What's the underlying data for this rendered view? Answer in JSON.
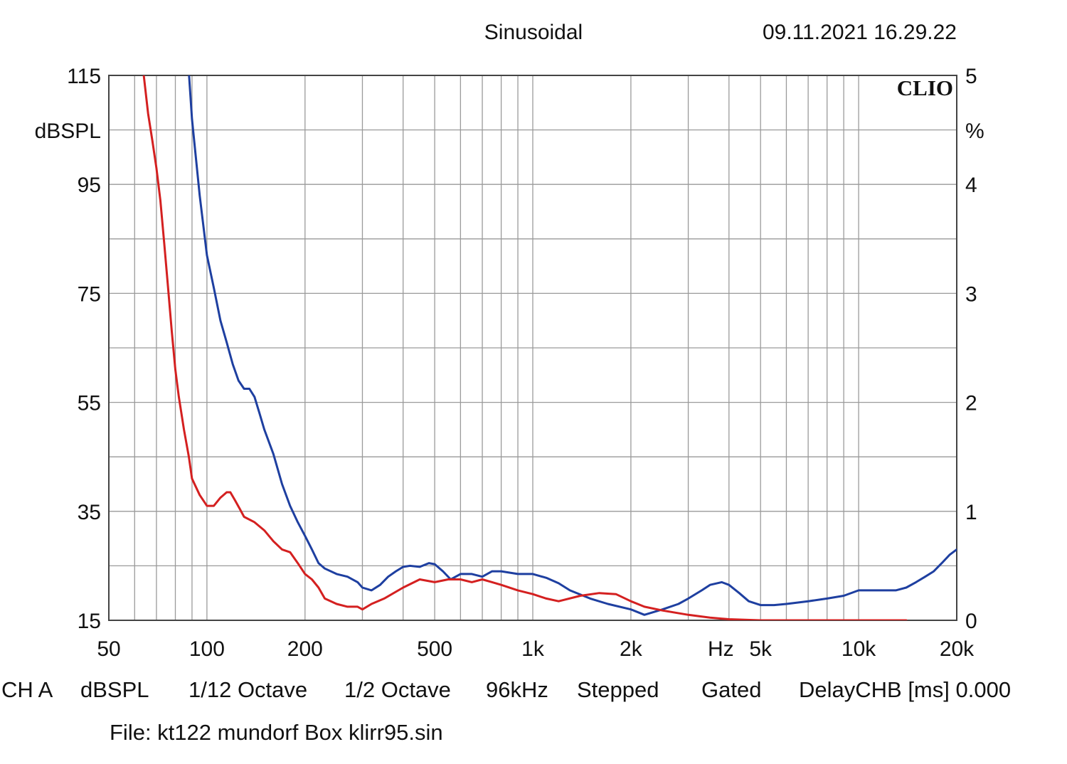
{
  "header": {
    "mode": "Sinusoidal",
    "timestamp": "09.11.2021 16.29.22"
  },
  "logo": "CLIO",
  "chart_data": {
    "type": "line",
    "xscale": "log",
    "xlim": [
      50,
      20000
    ],
    "ylim_left": [
      15,
      115
    ],
    "ylim_right": [
      0,
      5
    ],
    "left_axis_unit": "dBSPL",
    "right_axis_unit": "%",
    "x_unit_label": "Hz",
    "x_ticks": [
      {
        "value": 50,
        "label": "50"
      },
      {
        "value": 100,
        "label": "100"
      },
      {
        "value": 200,
        "label": "200"
      },
      {
        "value": 500,
        "label": "500"
      },
      {
        "value": 1000,
        "label": "1k"
      },
      {
        "value": 2000,
        "label": "2k"
      },
      {
        "value": 5000,
        "label": "5k"
      },
      {
        "value": 10000,
        "label": "10k"
      },
      {
        "value": 20000,
        "label": "20k"
      }
    ],
    "left_ticks": [
      115,
      95,
      75,
      55,
      35,
      15
    ],
    "right_ticks": [
      5,
      4,
      3,
      2,
      1,
      0
    ],
    "grid": true,
    "series": [
      {
        "color": "#1e3fa0",
        "x": [
          87,
          90,
          95,
          100,
          105,
          110,
          115,
          120,
          125,
          130,
          135,
          140,
          145,
          150,
          160,
          170,
          180,
          190,
          200,
          210,
          220,
          230,
          250,
          270,
          290,
          300,
          320,
          340,
          360,
          380,
          400,
          420,
          450,
          480,
          500,
          530,
          560,
          600,
          650,
          700,
          750,
          800,
          900,
          1000,
          1100,
          1200,
          1300,
          1500,
          1700,
          2000,
          2200,
          2500,
          2800,
          3000,
          3300,
          3500,
          3800,
          4000,
          4300,
          4600,
          5000,
          5500,
          6000,
          7000,
          8000,
          9000,
          10000,
          11000,
          12000,
          13000,
          14000,
          15000,
          16000,
          17000,
          18000,
          19000,
          20000
        ],
        "y": [
          120,
          107,
          93,
          82,
          76,
          70,
          66,
          62,
          59,
          57.5,
          57.5,
          56,
          53,
          50,
          45.5,
          40,
          36,
          33,
          30.5,
          28,
          25.5,
          24.5,
          23.5,
          23,
          22,
          21,
          20.5,
          21.5,
          23,
          24,
          24.8,
          25,
          24.8,
          25.5,
          25.3,
          24,
          22.5,
          23.5,
          23.5,
          23,
          24,
          24,
          23.5,
          23.5,
          22.8,
          21.8,
          20.5,
          19,
          18,
          17,
          16,
          17,
          18,
          19,
          20.5,
          21.5,
          22,
          21.5,
          20,
          18.5,
          17.8,
          17.8,
          18,
          18.5,
          19,
          19.5,
          20.5,
          20.5,
          20.5,
          20.5,
          21,
          22,
          23,
          24,
          25.5,
          27,
          28
        ]
      },
      {
        "color": "#d42020",
        "x": [
          64,
          66,
          68,
          70,
          72,
          74,
          76,
          78,
          80,
          82,
          85,
          88,
          90,
          95,
          100,
          105,
          110,
          115,
          118,
          122,
          126,
          130,
          140,
          150,
          160,
          170,
          180,
          190,
          200,
          210,
          220,
          230,
          250,
          270,
          290,
          300,
          320,
          350,
          400,
          450,
          500,
          550,
          600,
          650,
          700,
          750,
          800,
          900,
          1000,
          1100,
          1200,
          1400,
          1600,
          1800,
          2000,
          2200,
          2500,
          3000,
          3500,
          4000,
          5000,
          6000,
          8000,
          10000,
          12000,
          14000
        ],
        "y": [
          115,
          108,
          103,
          98,
          92,
          84,
          76,
          68,
          61,
          56,
          50,
          45,
          41,
          38,
          36,
          36,
          37.5,
          38.5,
          38.5,
          37,
          35.5,
          34,
          33,
          31.5,
          29.5,
          28,
          27.5,
          25.5,
          23.5,
          22.5,
          21,
          19,
          18,
          17.5,
          17.5,
          17,
          18,
          19,
          21,
          22.5,
          22,
          22.5,
          22.5,
          22,
          22.5,
          22,
          21.5,
          20.5,
          19.8,
          19,
          18.5,
          19.5,
          20,
          19.8,
          18.5,
          17.5,
          16.8,
          16,
          15.5,
          15.2,
          15,
          15,
          15,
          15,
          15,
          15
        ]
      }
    ]
  },
  "footer": {
    "ch": "CH A",
    "unit": "dBSPL",
    "smoothing": "1/12 Octave",
    "resolution": "1/2 Octave",
    "rate": "96kHz",
    "sweep": "Stepped",
    "gating": "Gated",
    "delay": "DelayCHB [ms] 0.000",
    "file": "File: kt122 mundorf Box klirr95.sin"
  }
}
